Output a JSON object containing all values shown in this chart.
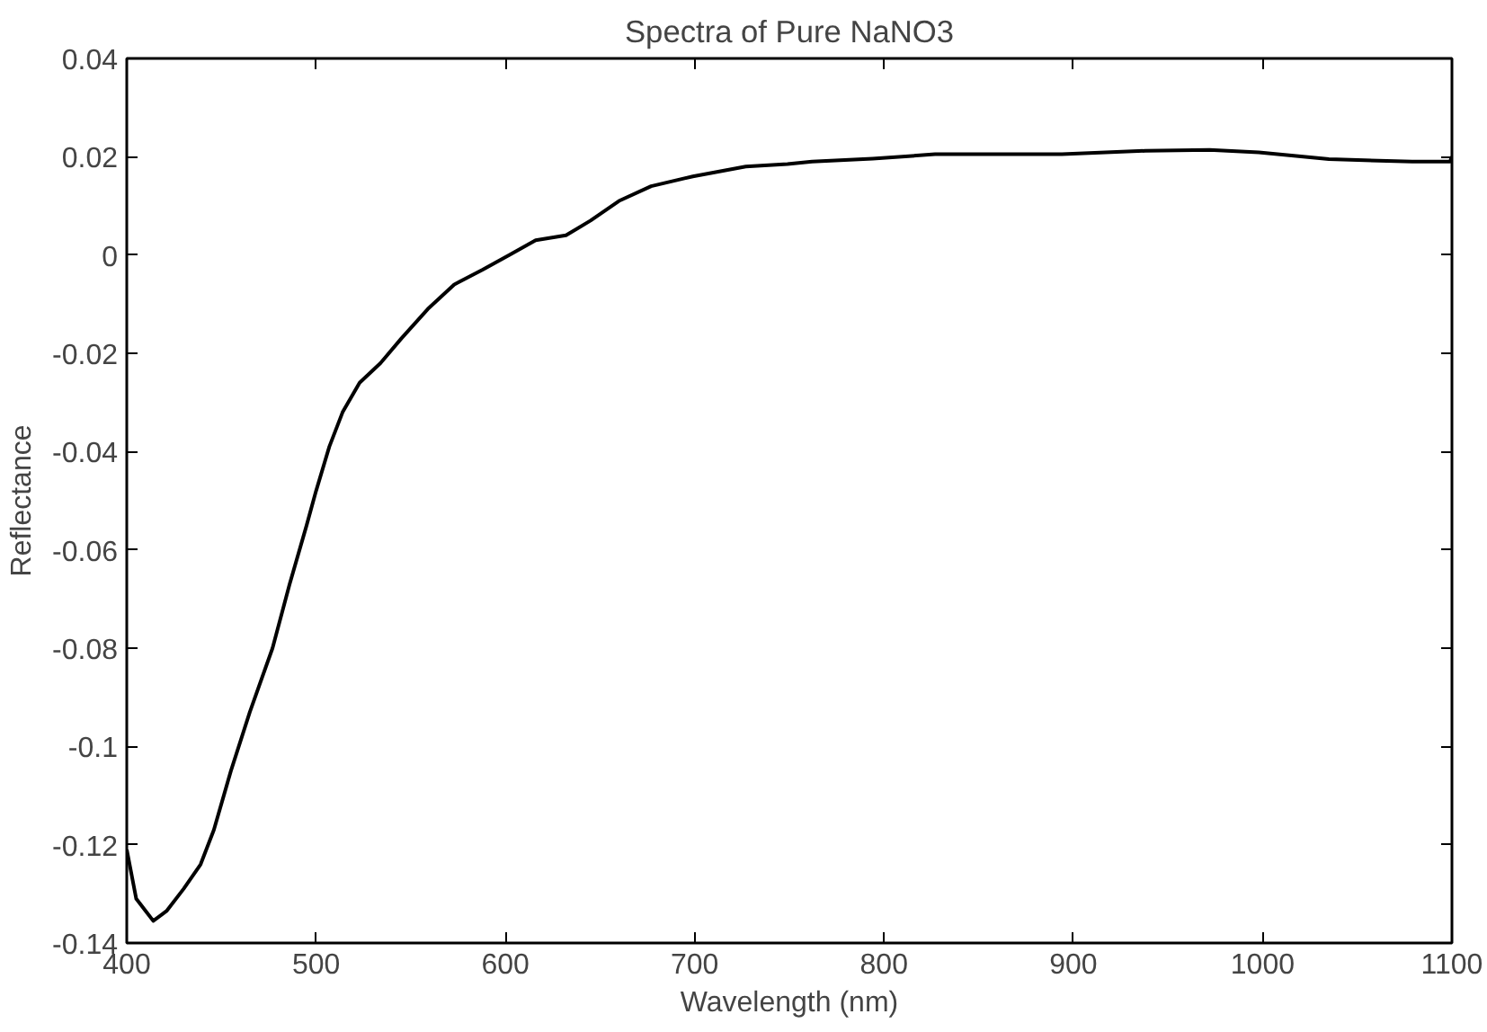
{
  "chart_data": {
    "type": "line",
    "title": "Spectra of Pure NaNO3",
    "xlabel": "Wavelength (nm)",
    "ylabel": "Reflectance",
    "x": [
      400,
      405,
      414,
      421,
      430,
      439,
      446,
      455,
      465,
      477,
      486,
      495,
      500,
      507,
      514,
      523,
      534,
      545,
      559,
      573,
      588,
      602,
      616,
      632,
      645,
      660,
      677,
      699,
      727,
      749,
      762,
      794,
      827,
      894,
      938,
      972,
      998,
      1035,
      1079,
      1099,
      1100
    ],
    "series": [
      {
        "color": "#000000",
        "values": [
          -0.121,
          -0.131,
          -0.1355,
          -0.1335,
          -0.129,
          -0.124,
          -0.117,
          -0.105,
          -0.093,
          -0.08,
          -0.067,
          -0.055,
          -0.048,
          -0.039,
          -0.032,
          -0.026,
          -0.022,
          -0.017,
          -0.011,
          -0.006,
          -0.003,
          0.0,
          0.003,
          0.004,
          0.007,
          0.011,
          0.014,
          0.016,
          0.018,
          0.0185,
          0.019,
          0.0196,
          0.0205,
          0.0205,
          0.0212,
          0.0214,
          0.0209,
          0.0195,
          0.019,
          0.019,
          0.02
        ]
      }
    ],
    "xlim": [
      400,
      1100
    ],
    "ylim": [
      -0.14,
      0.04
    ],
    "xticks": [
      400,
      500,
      600,
      700,
      800,
      900,
      1000,
      1100
    ],
    "yticks": [
      -0.14,
      -0.12,
      {
        "value": -0.1,
        "label": "-0.1"
      },
      -0.08,
      -0.06,
      -0.04,
      -0.02,
      0,
      0.02,
      0.04
    ],
    "line_style": "solid"
  }
}
